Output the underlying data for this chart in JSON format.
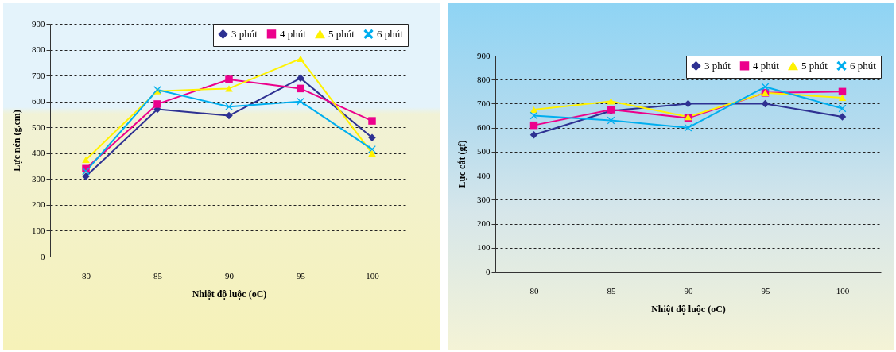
{
  "chart_data": [
    {
      "type": "line",
      "ylabel": "Lực nén (g.cm)",
      "xlabel": "Nhiệt độ luộc (oC)",
      "categories": [
        "80",
        "85",
        "90",
        "95",
        "100"
      ],
      "ylim": [
        0,
        900
      ],
      "yticks": [
        0,
        100,
        200,
        300,
        400,
        500,
        600,
        700,
        800,
        900
      ],
      "grid": "y",
      "legend": "top right",
      "line_style": "solid",
      "series": [
        {
          "name": "3 phút",
          "color": "#2e3192",
          "marker": "diamond",
          "values": [
            310,
            570,
            545,
            690,
            460
          ]
        },
        {
          "name": "4 phút",
          "color": "#ec008c",
          "marker": "square",
          "values": [
            340,
            590,
            685,
            650,
            525
          ]
        },
        {
          "name": "5 phút",
          "color": "#fff200",
          "marker": "triangle",
          "values": [
            375,
            640,
            650,
            765,
            400
          ]
        },
        {
          "name": "6 phút",
          "color": "#00aeef",
          "marker": "cross",
          "values": [
            330,
            645,
            580,
            600,
            415
          ]
        }
      ]
    },
    {
      "type": "line",
      "ylabel": "Lực cắt (gf)",
      "xlabel": "Nhiệt độ luộc (oC)",
      "categories": [
        "80",
        "85",
        "90",
        "95",
        "100"
      ],
      "ylim": [
        0,
        900
      ],
      "yticks": [
        0,
        100,
        200,
        300,
        400,
        500,
        600,
        700,
        800,
        900
      ],
      "grid": "y",
      "legend": "top right",
      "line_style": "solid",
      "series": [
        {
          "name": "3 phút",
          "color": "#2e3192",
          "marker": "diamond",
          "values": [
            570,
            670,
            700,
            700,
            645
          ]
        },
        {
          "name": "4 phút",
          "color": "#ec008c",
          "marker": "square",
          "values": [
            610,
            675,
            640,
            745,
            750
          ]
        },
        {
          "name": "5 phút",
          "color": "#fff200",
          "marker": "triangle",
          "values": [
            675,
            710,
            645,
            745,
            725
          ]
        },
        {
          "name": "6 phút",
          "color": "#00aeef",
          "marker": "cross",
          "values": [
            650,
            630,
            600,
            770,
            680
          ]
        }
      ]
    }
  ]
}
